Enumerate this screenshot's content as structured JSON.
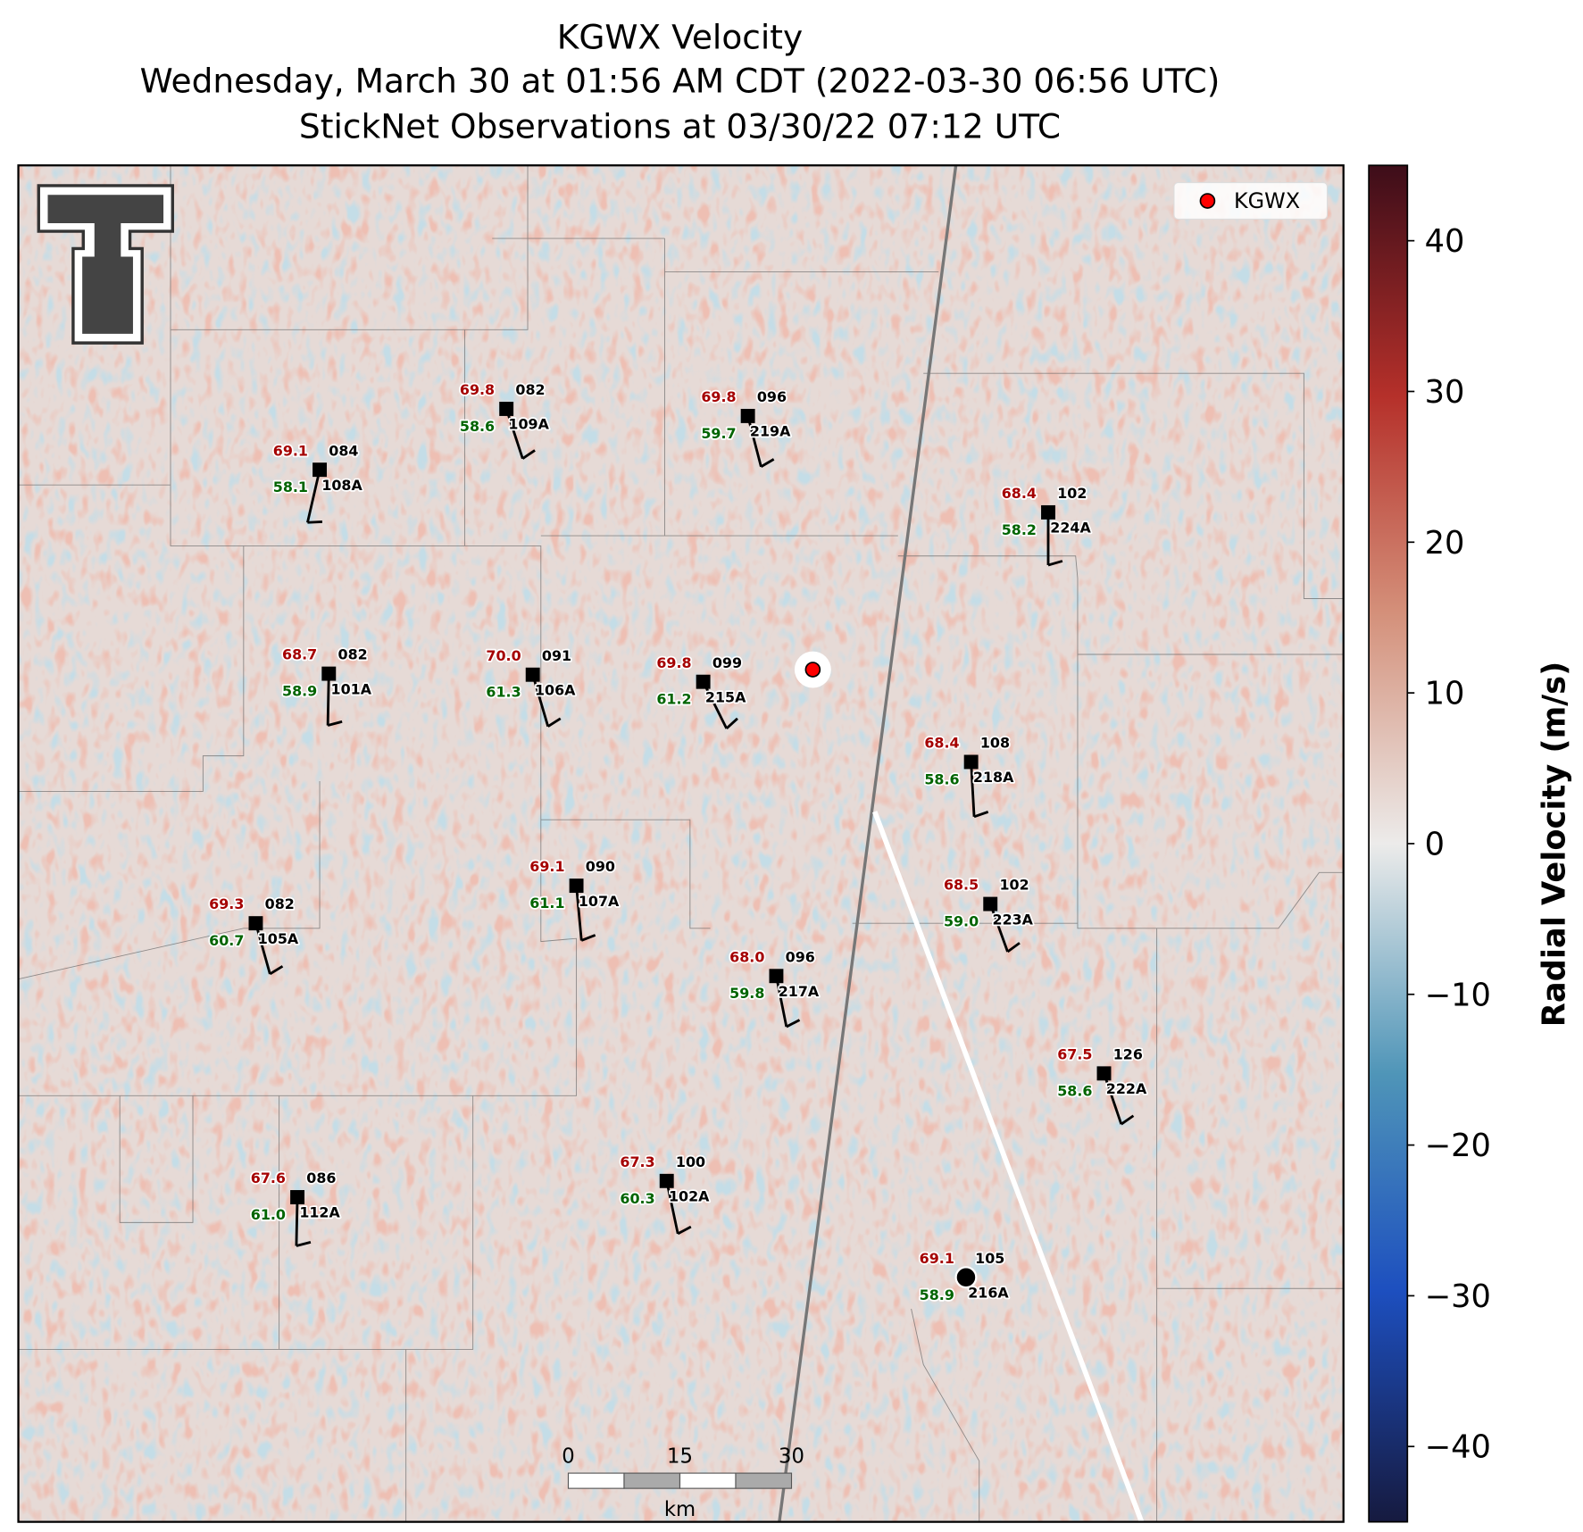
{
  "title_lines": [
    "KGWX Velocity",
    "Wednesday, March 30 at 01:56 AM CDT (2022-03-30 06:56 UTC)",
    "StickNet Observations at 03/30/22 07:12 UTC"
  ],
  "legend": {
    "label": "KGWX",
    "color": "#ff0000"
  },
  "colorbar": {
    "label": "Radial Velocity (m/s)",
    "lim": [
      -45,
      45
    ],
    "ticks": [
      {
        "value": -40,
        "label": "−40"
      },
      {
        "value": -30,
        "label": "−30"
      },
      {
        "value": -20,
        "label": "−20"
      },
      {
        "value": -10,
        "label": "−10"
      },
      0,
      10,
      20,
      30,
      40
    ]
  },
  "scale_bar": {
    "ticks": [
      0,
      15,
      30
    ],
    "unit": "km"
  },
  "stations": [
    {
      "id": "108A",
      "temp": "69.1",
      "dew": "58.1",
      "dir": "084"
    },
    {
      "id": "109A",
      "temp": "69.8",
      "dew": "58.6",
      "dir": "082"
    },
    {
      "id": "219A",
      "temp": "69.8",
      "dew": "59.7",
      "dir": "096"
    },
    {
      "id": "224A",
      "temp": "68.4",
      "dew": "58.2",
      "dir": "102"
    },
    {
      "id": "101A",
      "temp": "68.7",
      "dew": "58.9",
      "dir": "082"
    },
    {
      "id": "106A",
      "temp": "70.0",
      "dew": "61.3",
      "dir": "091"
    },
    {
      "id": "215A",
      "temp": "69.8",
      "dew": "61.2",
      "dir": "099"
    },
    {
      "id": "218A",
      "temp": "68.4",
      "dew": "58.6",
      "dir": "108"
    },
    {
      "id": "107A",
      "temp": "69.1",
      "dew": "61.1",
      "dir": "090"
    },
    {
      "id": "105A",
      "temp": "69.3",
      "dew": "60.7",
      "dir": "082"
    },
    {
      "id": "223A",
      "temp": "68.5",
      "dew": "59.0",
      "dir": "102"
    },
    {
      "id": "217A",
      "temp": "68.0",
      "dew": "59.8",
      "dir": "096"
    },
    {
      "id": "222A",
      "temp": "67.5",
      "dew": "58.6",
      "dir": "126"
    },
    {
      "id": "102A",
      "temp": "67.3",
      "dew": "60.3",
      "dir": "100"
    },
    {
      "id": "112A",
      "temp": "67.6",
      "dew": "61.0",
      "dir": "086"
    },
    {
      "id": "216A",
      "temp": "69.1",
      "dew": "58.9",
      "dir": "105"
    }
  ]
}
